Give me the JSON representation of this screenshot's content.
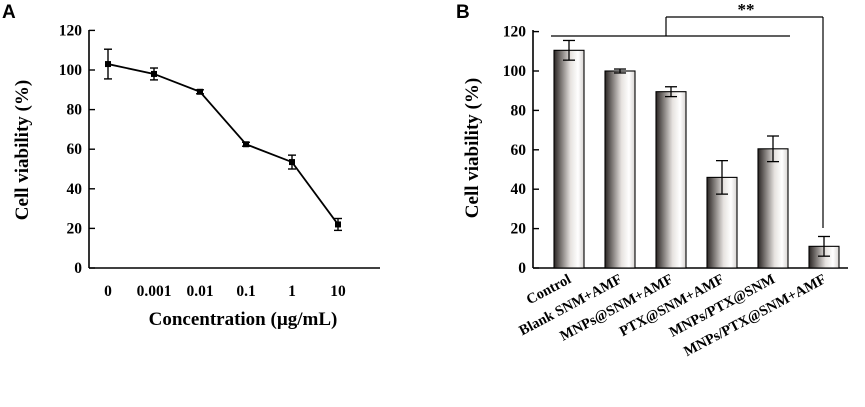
{
  "chart_data": [
    {
      "panel": "A",
      "type": "line",
      "title": "",
      "xlabel": "Concentration (µg/mL)",
      "ylabel": "Cell viability (%)",
      "categories": [
        "0",
        "0.001",
        "0.01",
        "0.1",
        "1",
        "10"
      ],
      "values": [
        103,
        98,
        89,
        62.5,
        53.5,
        22
      ],
      "errors": [
        7.5,
        3,
        1,
        1,
        3.5,
        3
      ],
      "ylim": [
        0,
        120
      ],
      "yticks": [
        "0",
        "20",
        "40",
        "60",
        "80",
        "100",
        "120"
      ],
      "grid": false
    },
    {
      "panel": "B",
      "type": "bar",
      "title": "",
      "xlabel": "",
      "ylabel": "Cell viability (%)",
      "categories": [
        "Control",
        "Blank SNM+AMF",
        "MNPs@SNM+AMF",
        "PTX@SNM+AMF",
        "MNPs/PTX@SNM",
        "MNPs/PTX@SNM+AMF"
      ],
      "values": [
        110.5,
        100,
        89.5,
        46,
        60.5,
        11
      ],
      "errors": [
        5,
        1,
        2.5,
        8.5,
        6.5,
        5
      ],
      "ylim": [
        0,
        120
      ],
      "yticks": [
        "0",
        "20",
        "40",
        "60",
        "80",
        "100",
        "120"
      ],
      "grid": false,
      "annotation": "**"
    }
  ]
}
